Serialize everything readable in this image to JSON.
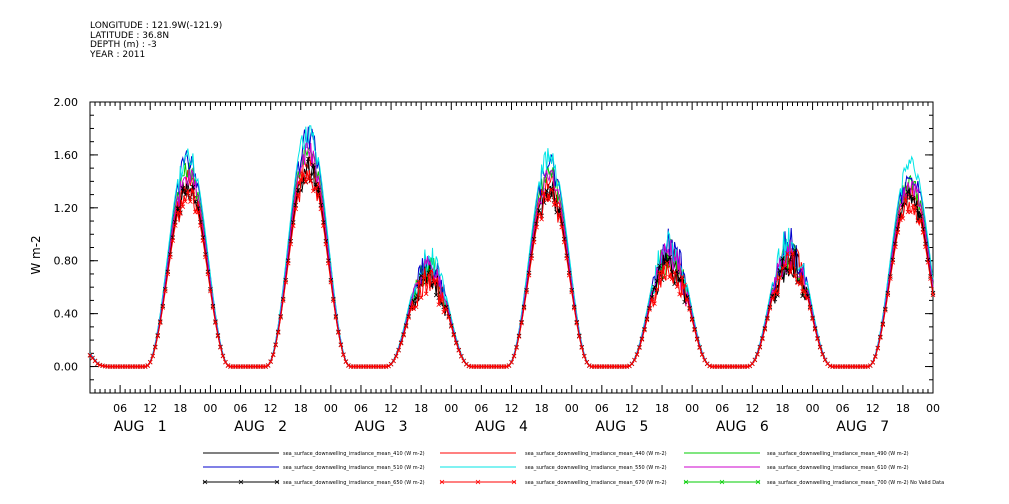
{
  "header": {
    "longitude": "LONGITUDE : 121.9W(-121.9)",
    "latitude": "LATITUDE : 36.8N",
    "depth": "DEPTH (m) : -3",
    "year": "YEAR : 2011"
  },
  "chart_data": {
    "type": "line",
    "title": "",
    "xlabel": "",
    "ylabel": "W m-2",
    "ylim": [
      -0.2,
      2.0
    ],
    "y_ticks": [
      "2.00",
      "1.60",
      "1.20",
      "0.80",
      "0.40",
      "0.00"
    ],
    "y_tick_values": [
      2.0,
      1.6,
      1.2,
      0.8,
      0.4,
      0.0
    ],
    "x_hour_ticks": [
      "06",
      "12",
      "18",
      "00",
      "06",
      "12",
      "18",
      "00",
      "06",
      "12",
      "18",
      "00",
      "06",
      "12",
      "18",
      "00",
      "06",
      "12",
      "18",
      "00",
      "06",
      "12",
      "18",
      "00",
      "06",
      "12",
      "18",
      "00"
    ],
    "x_day_labels": [
      "AUG 1",
      "AUG 2",
      "AUG 3",
      "AUG 4",
      "AUG 5",
      "AUG 6",
      "AUG 7"
    ],
    "x_range_hours": [
      0,
      168
    ],
    "daily_peak_hour": 19.5,
    "daily_peaks": [
      1.62,
      1.81,
      0.86,
      1.6,
      1.0,
      1.02,
      1.54
    ],
    "grid": false,
    "legend_placement": "bottom",
    "series": [
      {
        "name": "sea_surface_downwelling_irradiance_mean_410 (W m-2)",
        "color": "#000000",
        "scale": 0.88,
        "marker": "none"
      },
      {
        "name": "sea_surface_downwelling_irradiance_mean_440 (W m-2)",
        "color": "#ff0000",
        "scale": 0.9,
        "marker": "none"
      },
      {
        "name": "sea_surface_downwelling_irradiance_mean_490 (W m-2)",
        "color": "#00cc00",
        "scale": 0.95,
        "marker": "none"
      },
      {
        "name": "sea_surface_downwelling_irradiance_mean_510 (W m-2)",
        "color": "#0000cc",
        "scale": 1.0,
        "marker": "none"
      },
      {
        "name": "sea_surface_downwelling_irradiance_mean_550 (W m-2)",
        "color": "#00e5e5",
        "scale": 1.02,
        "marker": "none"
      },
      {
        "name": "sea_surface_downwelling_irradiance_mean_610 (W m-2)",
        "color": "#cc00cc",
        "scale": 0.93,
        "marker": "none"
      },
      {
        "name": "sea_surface_downwelling_irradiance_mean_650 (W m-2)",
        "color": "#000000",
        "scale": 0.86,
        "marker": "x"
      },
      {
        "name": "sea_surface_downwelling_irradiance_mean_670 (W m-2)",
        "color": "#ff0000",
        "scale": 0.84,
        "marker": "x"
      },
      {
        "name": "sea_surface_downwelling_irradiance_mean_700 (W m-2) No Valid Data",
        "color": "#00cc00",
        "scale": 0,
        "marker": "x"
      }
    ]
  }
}
